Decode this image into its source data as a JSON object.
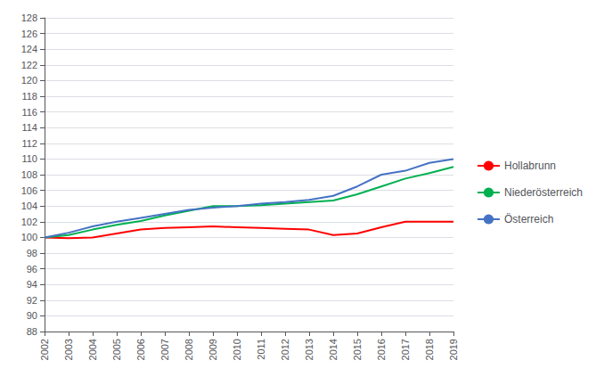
{
  "chart_data": {
    "type": "line",
    "x": [
      2002,
      2003,
      2004,
      2005,
      2006,
      2007,
      2008,
      2009,
      2010,
      2011,
      2012,
      2013,
      2014,
      2015,
      2016,
      2017,
      2018,
      2019
    ],
    "series": [
      {
        "name": "Hollabrunn",
        "color": "#ff0000",
        "values": [
          100.0,
          99.9,
          100.0,
          100.5,
          101.0,
          101.2,
          101.3,
          101.4,
          101.3,
          101.2,
          101.1,
          101.0,
          100.3,
          100.5,
          101.3,
          102.0,
          102.0,
          102.0
        ]
      },
      {
        "name": "Niederösterreich",
        "color": "#00b050",
        "values": [
          100.0,
          100.3,
          101.0,
          101.6,
          102.1,
          102.8,
          103.4,
          104.0,
          104.0,
          104.1,
          104.3,
          104.5,
          104.7,
          105.5,
          106.5,
          107.5,
          108.2,
          109.0
        ]
      },
      {
        "name": "Österreich",
        "color": "#4472c4",
        "values": [
          100.0,
          100.6,
          101.4,
          102.0,
          102.5,
          103.0,
          103.5,
          103.8,
          104.0,
          104.3,
          104.5,
          104.8,
          105.3,
          106.5,
          108.0,
          108.5,
          109.5,
          110.0
        ]
      }
    ],
    "xlim": [
      2002,
      2019
    ],
    "xticks": [
      2002,
      2003,
      2004,
      2005,
      2006,
      2007,
      2008,
      2009,
      2010,
      2011,
      2012,
      2013,
      2014,
      2015,
      2016,
      2017,
      2018,
      2019
    ],
    "ylim": [
      88,
      128
    ],
    "yticks": [
      88,
      90,
      92,
      94,
      96,
      98,
      100,
      102,
      104,
      106,
      108,
      110,
      112,
      114,
      116,
      118,
      120,
      122,
      124,
      126,
      128
    ],
    "grid": true,
    "legend": "right"
  }
}
